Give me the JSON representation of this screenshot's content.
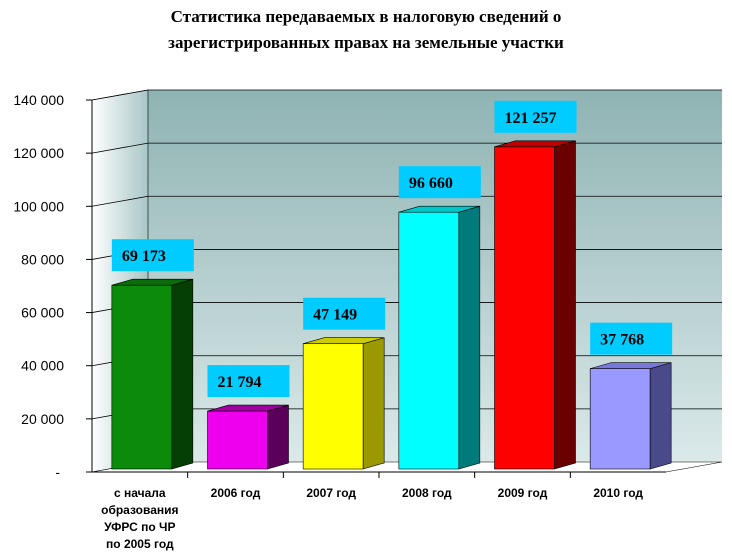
{
  "chart_data": {
    "type": "bar",
    "title": [
      "Статистика передаваемых в налоговую сведений о",
      "зарегистрированных правах на земельные участки"
    ],
    "categories": [
      [
        "с начала",
        "образования",
        "УФРС по ЧР",
        "по 2005 год"
      ],
      [
        "2006 год"
      ],
      [
        "2007 год"
      ],
      [
        "2008 год"
      ],
      [
        "2009 год"
      ],
      [
        "2010 год"
      ]
    ],
    "values": [
      69173,
      21794,
      47149,
      96660,
      121257,
      37768
    ],
    "data_labels": [
      "69 173",
      "21 794",
      "47 149",
      "96 660",
      "121 257",
      "37 768"
    ],
    "y_ticks": [
      {
        "value": 0,
        "label": "-"
      },
      {
        "value": 20000,
        "label": "20 000"
      },
      {
        "value": 40000,
        "label": "40 000"
      },
      {
        "value": 60000,
        "label": "60 000"
      },
      {
        "value": 80000,
        "label": "80 000"
      },
      {
        "value": 100000,
        "label": "100 000"
      },
      {
        "value": 120000,
        "label": "120 000"
      },
      {
        "value": 140000,
        "label": "140 000"
      }
    ],
    "ylim": [
      0,
      140000
    ],
    "grid": true,
    "legend": "none",
    "colors": {
      "bars": [
        {
          "front": "#0b8a0b",
          "side": "#063f06",
          "top": "#0a6d0a"
        },
        {
          "front": "#ee00ee",
          "side": "#5a005a",
          "top": "#a000a0"
        },
        {
          "front": "#ffff00",
          "side": "#9a9a00",
          "top": "#cccc00"
        },
        {
          "front": "#00ffff",
          "side": "#007a7a",
          "top": "#00c8c8"
        },
        {
          "front": "#ff0000",
          "side": "#6a0000",
          "top": "#c00000"
        },
        {
          "front": "#9999ff",
          "side": "#4a4a8a",
          "top": "#7777dd"
        }
      ],
      "wall_top": "#8fb3b3",
      "wall_bottom": "#dbe9e9",
      "label_box": "#00ccff",
      "grid": "#000000"
    }
  }
}
